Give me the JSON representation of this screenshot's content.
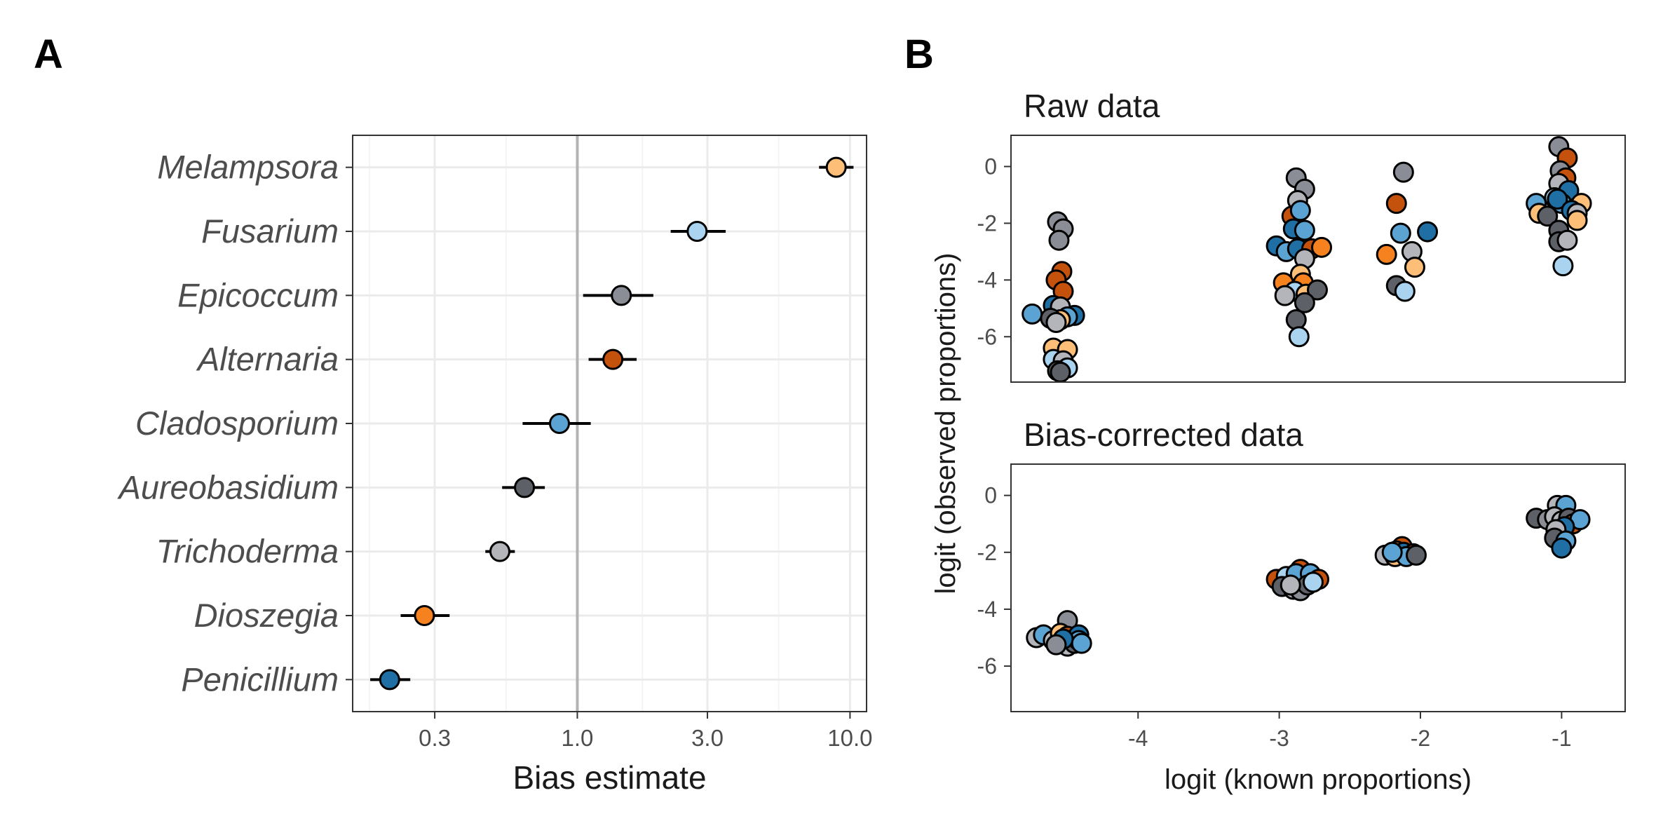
{
  "figure": {
    "panel_a_tag": "A",
    "panel_b_tag": "B"
  },
  "colors": {
    "Melampsora": "#fdbf78",
    "Fusarium": "#a9d3ee",
    "Epicoccum": "#8a8d95",
    "Alternaria": "#c4520c",
    "Cladosporium": "#5ba3d3",
    "Aureobasidium": "#5e6067",
    "Trichoderma": "#b3b5bb",
    "Dioszegia": "#f5821f",
    "Penicillium": "#1f6fa5"
  },
  "chart_data": [
    {
      "type": "scatter",
      "panel": "A",
      "xlabel": "Bias estimate",
      "x_scale": "log",
      "xlim": [
        0.15,
        11.5
      ],
      "x_ticks": [
        "0.3",
        "1.0",
        "3.0",
        "10.0"
      ],
      "x_tick_values": [
        0.3,
        1.0,
        3.0,
        10.0
      ],
      "reference_line": 1.0,
      "categories": [
        "Melampsora",
        "Fusarium",
        "Epicoccum",
        "Alternaria",
        "Cladosporium",
        "Aureobasidium",
        "Trichoderma",
        "Dioszegia",
        "Penicillium"
      ],
      "values": [
        8.9,
        2.75,
        1.45,
        1.35,
        0.86,
        0.64,
        0.52,
        0.275,
        0.205
      ],
      "ci_low": [
        7.7,
        2.2,
        1.05,
        1.1,
        0.63,
        0.53,
        0.46,
        0.225,
        0.174
      ],
      "ci_high": [
        10.3,
        3.5,
        1.9,
        1.65,
        1.12,
        0.76,
        0.59,
        0.34,
        0.244
      ]
    },
    {
      "type": "scatter",
      "panel": "B",
      "xlabel": "logit (known proportions)",
      "ylabel": "logit (observed proportions)",
      "xlim": [
        -4.9,
        -0.55
      ],
      "x_ticks": [
        "-4",
        "-3",
        "-2",
        "-1"
      ],
      "x_tick_values": [
        -4,
        -3,
        -2,
        -1
      ],
      "y_ticks": [
        "0",
        "-2",
        "-4",
        "-6"
      ],
      "y_tick_values": [
        0,
        -2,
        -4,
        -6
      ],
      "ylim": [
        -7.6,
        1.1
      ],
      "facets": [
        {
          "title": "Raw data",
          "points": [
            {
              "x": -4.57,
              "y": -1.95,
              "g": "Epicoccum"
            },
            {
              "x": -4.53,
              "y": -2.2,
              "g": "Epicoccum"
            },
            {
              "x": -4.56,
              "y": -2.6,
              "g": "Epicoccum"
            },
            {
              "x": -4.54,
              "y": -3.7,
              "g": "Alternaria"
            },
            {
              "x": -4.58,
              "y": -4.0,
              "g": "Alternaria"
            },
            {
              "x": -4.53,
              "y": -4.4,
              "g": "Alternaria"
            },
            {
              "x": -4.75,
              "y": -5.2,
              "g": "Cladosporium"
            },
            {
              "x": -4.6,
              "y": -4.9,
              "g": "Penicillium"
            },
            {
              "x": -4.55,
              "y": -4.95,
              "g": "Trichoderma"
            },
            {
              "x": -4.45,
              "y": -5.25,
              "g": "Penicillium"
            },
            {
              "x": -4.5,
              "y": -5.3,
              "g": "Cladosporium"
            },
            {
              "x": -4.55,
              "y": -5.4,
              "g": "Melampsora"
            },
            {
              "x": -4.62,
              "y": -5.35,
              "g": "Aureobasidium"
            },
            {
              "x": -4.58,
              "y": -5.5,
              "g": "Trichoderma"
            },
            {
              "x": -4.6,
              "y": -6.4,
              "g": "Melampsora"
            },
            {
              "x": -4.5,
              "y": -6.45,
              "g": "Melampsora"
            },
            {
              "x": -4.6,
              "y": -6.8,
              "g": "Fusarium"
            },
            {
              "x": -4.53,
              "y": -6.85,
              "g": "Trichoderma"
            },
            {
              "x": -4.5,
              "y": -7.1,
              "g": "Fusarium"
            },
            {
              "x": -4.57,
              "y": -7.2,
              "g": "Aureobasidium"
            },
            {
              "x": -4.55,
              "y": -7.25,
              "g": "Aureobasidium"
            },
            {
              "x": -2.88,
              "y": -0.4,
              "g": "Epicoccum"
            },
            {
              "x": -2.82,
              "y": -0.8,
              "g": "Epicoccum"
            },
            {
              "x": -2.87,
              "y": -1.2,
              "g": "Trichoderma"
            },
            {
              "x": -2.91,
              "y": -1.75,
              "g": "Alternaria"
            },
            {
              "x": -2.85,
              "y": -1.55,
              "g": "Cladosporium"
            },
            {
              "x": -2.9,
              "y": -2.2,
              "g": "Penicillium"
            },
            {
              "x": -2.82,
              "y": -2.25,
              "g": "Cladosporium"
            },
            {
              "x": -3.02,
              "y": -2.8,
              "g": "Penicillium"
            },
            {
              "x": -2.95,
              "y": -3.0,
              "g": "Cladosporium"
            },
            {
              "x": -2.87,
              "y": -2.9,
              "g": "Penicillium"
            },
            {
              "x": -2.77,
              "y": -2.9,
              "g": "Alternaria"
            },
            {
              "x": -2.7,
              "y": -2.85,
              "g": "Dioszegia"
            },
            {
              "x": -2.82,
              "y": -3.25,
              "g": "Trichoderma"
            },
            {
              "x": -2.85,
              "y": -3.8,
              "g": "Melampsora"
            },
            {
              "x": -2.97,
              "y": -4.1,
              "g": "Dioszegia"
            },
            {
              "x": -2.83,
              "y": -4.1,
              "g": "Dioszegia"
            },
            {
              "x": -2.89,
              "y": -4.4,
              "g": "Fusarium"
            },
            {
              "x": -2.81,
              "y": -4.5,
              "g": "Melampsora"
            },
            {
              "x": -2.73,
              "y": -4.35,
              "g": "Aureobasidium"
            },
            {
              "x": -2.96,
              "y": -4.55,
              "g": "Trichoderma"
            },
            {
              "x": -2.82,
              "y": -4.8,
              "g": "Aureobasidium"
            },
            {
              "x": -2.88,
              "y": -5.4,
              "g": "Aureobasidium"
            },
            {
              "x": -2.86,
              "y": -6.0,
              "g": "Fusarium"
            },
            {
              "x": -2.12,
              "y": -0.2,
              "g": "Epicoccum"
            },
            {
              "x": -2.17,
              "y": -1.3,
              "g": "Alternaria"
            },
            {
              "x": -2.14,
              "y": -2.35,
              "g": "Cladosporium"
            },
            {
              "x": -1.95,
              "y": -2.3,
              "g": "Penicillium"
            },
            {
              "x": -2.24,
              "y": -3.1,
              "g": "Dioszegia"
            },
            {
              "x": -2.06,
              "y": -3.0,
              "g": "Trichoderma"
            },
            {
              "x": -2.04,
              "y": -3.55,
              "g": "Melampsora"
            },
            {
              "x": -2.17,
              "y": -4.2,
              "g": "Aureobasidium"
            },
            {
              "x": -2.11,
              "y": -4.4,
              "g": "Fusarium"
            },
            {
              "x": -1.02,
              "y": 0.7,
              "g": "Epicoccum"
            },
            {
              "x": -0.96,
              "y": 0.3,
              "g": "Alternaria"
            },
            {
              "x": -1.01,
              "y": -0.15,
              "g": "Epicoccum"
            },
            {
              "x": -0.97,
              "y": -0.4,
              "g": "Alternaria"
            },
            {
              "x": -1.02,
              "y": -0.6,
              "g": "Trichoderma"
            },
            {
              "x": -0.95,
              "y": -0.85,
              "g": "Penicillium"
            },
            {
              "x": -1.05,
              "y": -1.1,
              "g": "Fusarium"
            },
            {
              "x": -1.18,
              "y": -1.3,
              "g": "Cladosporium"
            },
            {
              "x": -1.0,
              "y": -1.3,
              "g": "Cladosporium"
            },
            {
              "x": -1.03,
              "y": -1.15,
              "g": "Penicillium"
            },
            {
              "x": -0.86,
              "y": -1.3,
              "g": "Melampsora"
            },
            {
              "x": -0.93,
              "y": -1.55,
              "g": "Penicillium"
            },
            {
              "x": -1.16,
              "y": -1.65,
              "g": "Melampsora"
            },
            {
              "x": -1.1,
              "y": -1.75,
              "g": "Aureobasidium"
            },
            {
              "x": -0.89,
              "y": -1.65,
              "g": "Trichoderma"
            },
            {
              "x": -0.89,
              "y": -1.9,
              "g": "Melampsora"
            },
            {
              "x": -1.02,
              "y": -2.25,
              "g": "Aureobasidium"
            },
            {
              "x": -1.02,
              "y": -2.65,
              "g": "Aureobasidium"
            },
            {
              "x": -0.96,
              "y": -2.6,
              "g": "Trichoderma"
            },
            {
              "x": -0.99,
              "y": -3.5,
              "g": "Fusarium"
            }
          ]
        },
        {
          "title": "Bias-corrected data",
          "points": [
            {
              "x": -4.5,
              "y": -4.4,
              "g": "Epicoccum"
            },
            {
              "x": -4.72,
              "y": -5.0,
              "g": "Trichoderma"
            },
            {
              "x": -4.67,
              "y": -4.9,
              "g": "Cladosporium"
            },
            {
              "x": -4.6,
              "y": -5.1,
              "g": "Trichoderma"
            },
            {
              "x": -4.55,
              "y": -4.85,
              "g": "Melampsora"
            },
            {
              "x": -4.5,
              "y": -4.95,
              "g": "Alternaria"
            },
            {
              "x": -4.45,
              "y": -5.05,
              "g": "Dioszegia"
            },
            {
              "x": -4.42,
              "y": -4.9,
              "g": "Penicillium"
            },
            {
              "x": -4.55,
              "y": -5.2,
              "g": "Aureobasidium"
            },
            {
              "x": -4.5,
              "y": -5.3,
              "g": "Trichoderma"
            },
            {
              "x": -4.45,
              "y": -5.2,
              "g": "Aureobasidium"
            },
            {
              "x": -4.42,
              "y": -5.1,
              "g": "Cladosporium"
            },
            {
              "x": -4.53,
              "y": -5.05,
              "g": "Penicillium"
            },
            {
              "x": -4.58,
              "y": -5.25,
              "g": "Epicoccum"
            },
            {
              "x": -4.4,
              "y": -5.2,
              "g": "Cladosporium"
            },
            {
              "x": -2.85,
              "y": -2.6,
              "g": "Alternaria"
            },
            {
              "x": -3.02,
              "y": -2.95,
              "g": "Alternaria"
            },
            {
              "x": -2.95,
              "y": -2.85,
              "g": "Fusarium"
            },
            {
              "x": -2.88,
              "y": -2.75,
              "g": "Cladosporium"
            },
            {
              "x": -2.78,
              "y": -2.75,
              "g": "Cladosporium"
            },
            {
              "x": -2.72,
              "y": -2.95,
              "g": "Alternaria"
            },
            {
              "x": -2.98,
              "y": -3.2,
              "g": "Aureobasidium"
            },
            {
              "x": -2.9,
              "y": -3.3,
              "g": "Trichoderma"
            },
            {
              "x": -2.85,
              "y": -3.35,
              "g": "Epicoccum"
            },
            {
              "x": -2.8,
              "y": -3.15,
              "g": "Aureobasidium"
            },
            {
              "x": -2.92,
              "y": -3.15,
              "g": "Trichoderma"
            },
            {
              "x": -2.76,
              "y": -3.05,
              "g": "Fusarium"
            },
            {
              "x": -2.13,
              "y": -1.8,
              "g": "Alternaria"
            },
            {
              "x": -2.25,
              "y": -2.1,
              "g": "Trichoderma"
            },
            {
              "x": -2.17,
              "y": -1.95,
              "g": "Dioszegia"
            },
            {
              "x": -2.12,
              "y": -2.0,
              "g": "Penicillium"
            },
            {
              "x": -2.05,
              "y": -2.05,
              "g": "Alternaria"
            },
            {
              "x": -2.18,
              "y": -2.15,
              "g": "Melampsora"
            },
            {
              "x": -2.1,
              "y": -2.15,
              "g": "Cladosporium"
            },
            {
              "x": -2.03,
              "y": -2.1,
              "g": "Aureobasidium"
            },
            {
              "x": -2.2,
              "y": -2.0,
              "g": "Cladosporium"
            },
            {
              "x": -1.03,
              "y": -0.35,
              "g": "Trichoderma"
            },
            {
              "x": -0.97,
              "y": -0.35,
              "g": "Cladosporium"
            },
            {
              "x": -1.18,
              "y": -0.8,
              "g": "Aureobasidium"
            },
            {
              "x": -1.1,
              "y": -0.85,
              "g": "Epicoccum"
            },
            {
              "x": -1.05,
              "y": -0.75,
              "g": "Trichoderma"
            },
            {
              "x": -1.0,
              "y": -0.9,
              "g": "Trichoderma"
            },
            {
              "x": -0.95,
              "y": -0.8,
              "g": "Aureobasidium"
            },
            {
              "x": -0.92,
              "y": -1.0,
              "g": "Alternaria"
            },
            {
              "x": -0.87,
              "y": -0.85,
              "g": "Cladosporium"
            },
            {
              "x": -0.98,
              "y": -1.1,
              "g": "Penicillium"
            },
            {
              "x": -1.04,
              "y": -1.2,
              "g": "Trichoderma"
            },
            {
              "x": -1.05,
              "y": -1.5,
              "g": "Aureobasidium"
            },
            {
              "x": -0.97,
              "y": -1.6,
              "g": "Cladosporium"
            },
            {
              "x": -1.0,
              "y": -1.85,
              "g": "Penicillium"
            }
          ]
        }
      ]
    }
  ]
}
